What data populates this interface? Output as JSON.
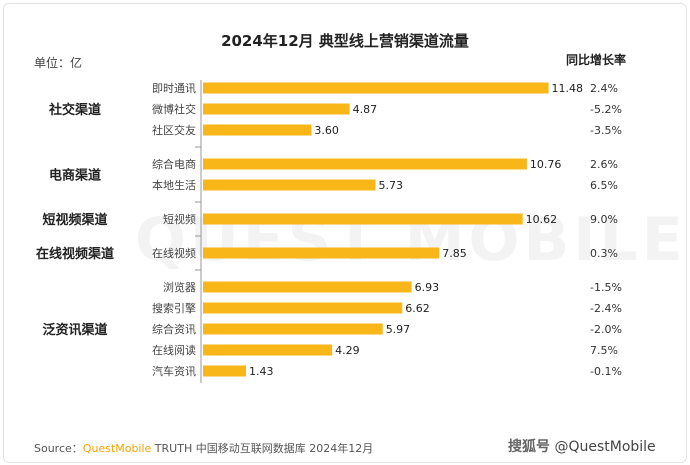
{
  "chart_data": {
    "type": "bar",
    "orientation": "horizontal",
    "title": "2024年12月 典型线上营销渠道流量",
    "unit_label": "单位：亿",
    "yoy_header": "同比增长率",
    "xlim": [
      0,
      12
    ],
    "grid": false,
    "color": "#F9B619",
    "groups": [
      {
        "name": "社交渠道",
        "items": [
          {
            "label": "即时通讯",
            "value": 11.48,
            "value_label": "11.48",
            "yoy": "2.4%"
          },
          {
            "label": "微博社交",
            "value": 4.87,
            "value_label": "4.87",
            "yoy": "-5.2%"
          },
          {
            "label": "社区交友",
            "value": 3.6,
            "value_label": "3.60",
            "yoy": "-3.5%"
          }
        ]
      },
      {
        "name": "电商渠道",
        "items": [
          {
            "label": "综合电商",
            "value": 10.76,
            "value_label": "10.76",
            "yoy": "2.6%"
          },
          {
            "label": "本地生活",
            "value": 5.73,
            "value_label": "5.73",
            "yoy": "6.5%"
          }
        ]
      },
      {
        "name": "短视频渠道",
        "items": [
          {
            "label": "短视频",
            "value": 10.62,
            "value_label": "10.62",
            "yoy": "9.0%"
          }
        ]
      },
      {
        "name": "在线视频渠道",
        "items": [
          {
            "label": "在线视频",
            "value": 7.85,
            "value_label": "7.85",
            "yoy": "0.3%"
          }
        ]
      },
      {
        "name": "泛资讯渠道",
        "items": [
          {
            "label": "浏览器",
            "value": 6.93,
            "value_label": "6.93",
            "yoy": "-1.5%"
          },
          {
            "label": "搜索引擎",
            "value": 6.62,
            "value_label": "6.62",
            "yoy": "-2.4%"
          },
          {
            "label": "综合资讯",
            "value": 5.97,
            "value_label": "5.97",
            "yoy": "-2.0%"
          },
          {
            "label": "在线阅读",
            "value": 4.29,
            "value_label": "4.29",
            "yoy": "7.5%"
          },
          {
            "label": "汽车资讯",
            "value": 1.43,
            "value_label": "1.43",
            "yoy": "-0.1%"
          }
        ]
      }
    ]
  },
  "watermark": "QUEST MOBILE",
  "source": {
    "prefix": "Source：",
    "brand": "QuestMobile",
    "rest": " TRUTH 中国移动互联网数据库 2024年12月"
  },
  "platform_credit": {
    "logo": "搜狐号",
    "handle": "@QuestMobile"
  }
}
